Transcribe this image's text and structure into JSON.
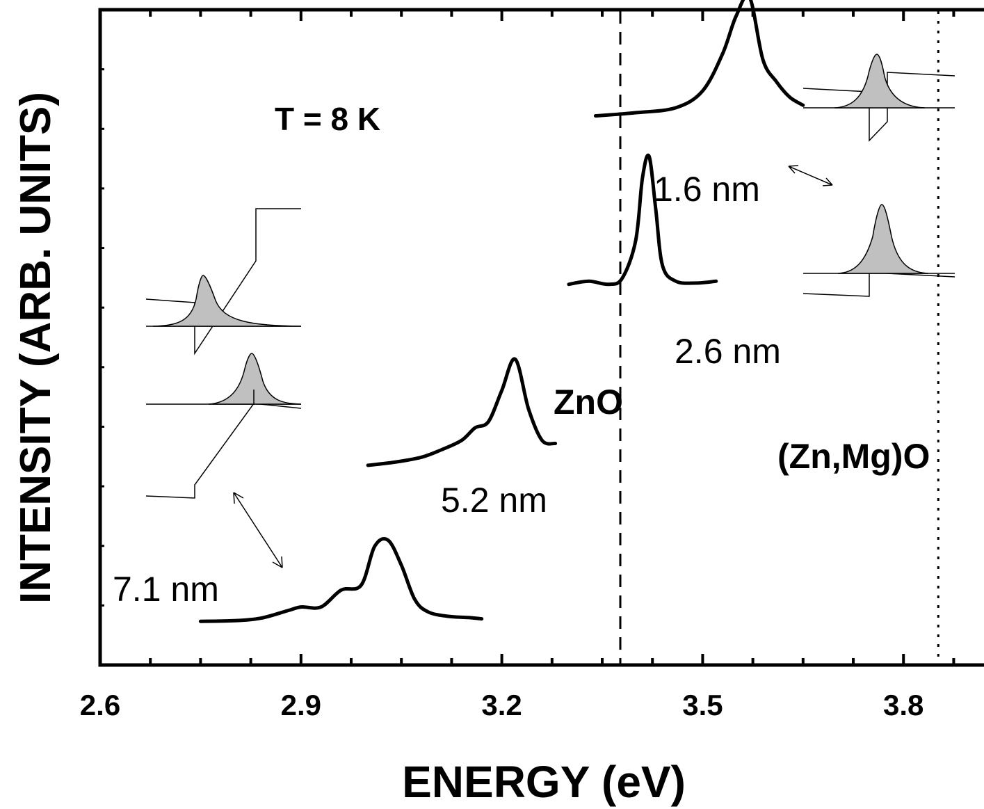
{
  "chart_data": {
    "type": "line",
    "title": "",
    "xlabel": "ENERGY (eV)",
    "ylabel": "INTENSITY (ARB. UNITS)",
    "xlim": [
      2.6,
      3.94
    ],
    "ylim": [
      0,
      10.5
    ],
    "x_ticks": [
      2.6,
      2.9,
      3.2,
      3.5,
      3.8
    ],
    "x_tick_labels": [
      "2.6",
      "2.9",
      "3.2",
      "3.5",
      "3.8"
    ],
    "temperature_label": "T = 8 K",
    "reference_lines": [
      {
        "label": "ZnO",
        "x": 3.377,
        "style": "dashed"
      },
      {
        "label": "(Zn,Mg)O",
        "x": 3.852,
        "style": "dotted"
      }
    ],
    "series": [
      {
        "name": "7.1 nm",
        "peak_eV": 3.03,
        "x": [
          2.75,
          2.8,
          2.84,
          2.88,
          2.9,
          2.93,
          2.96,
          2.99,
          3.01,
          3.03,
          3.05,
          3.07,
          3.09,
          3.12,
          3.15,
          3.17
        ],
        "y": [
          0.7,
          0.71,
          0.75,
          0.87,
          0.93,
          0.93,
          1.2,
          1.28,
          1.9,
          2.0,
          1.6,
          1.05,
          0.85,
          0.78,
          0.76,
          0.74
        ]
      },
      {
        "name": "5.2 nm",
        "peak_eV": 3.22,
        "x": [
          3.0,
          3.04,
          3.08,
          3.11,
          3.14,
          3.16,
          3.18,
          3.2,
          3.22,
          3.24,
          3.26,
          3.28
        ],
        "y": [
          3.2,
          3.25,
          3.33,
          3.45,
          3.6,
          3.8,
          3.9,
          4.4,
          4.9,
          4.1,
          3.6,
          3.55
        ]
      },
      {
        "name": "2.6 nm",
        "peak_eV": 3.42,
        "x": [
          3.3,
          3.33,
          3.36,
          3.38,
          3.4,
          3.41,
          3.42,
          3.43,
          3.44,
          3.46,
          3.49,
          3.52
        ],
        "y": [
          6.1,
          6.15,
          6.1,
          6.2,
          6.8,
          7.8,
          8.15,
          7.3,
          6.4,
          6.15,
          6.12,
          6.15
        ]
      },
      {
        "name": "1.6 nm",
        "peak_eV": 3.57,
        "x": [
          3.34,
          3.4,
          3.46,
          3.5,
          3.53,
          3.55,
          3.57,
          3.59,
          3.61,
          3.63,
          3.65
        ],
        "y": [
          8.8,
          8.85,
          8.93,
          9.2,
          9.8,
          10.4,
          10.7,
          9.7,
          9.35,
          9.1,
          8.97
        ]
      }
    ],
    "annotations": [
      "T = 8 K",
      "ZnO",
      "(Zn,Mg)O",
      "7.1 nm",
      "5.2 nm",
      "2.6 nm",
      "1.6 nm"
    ]
  }
}
